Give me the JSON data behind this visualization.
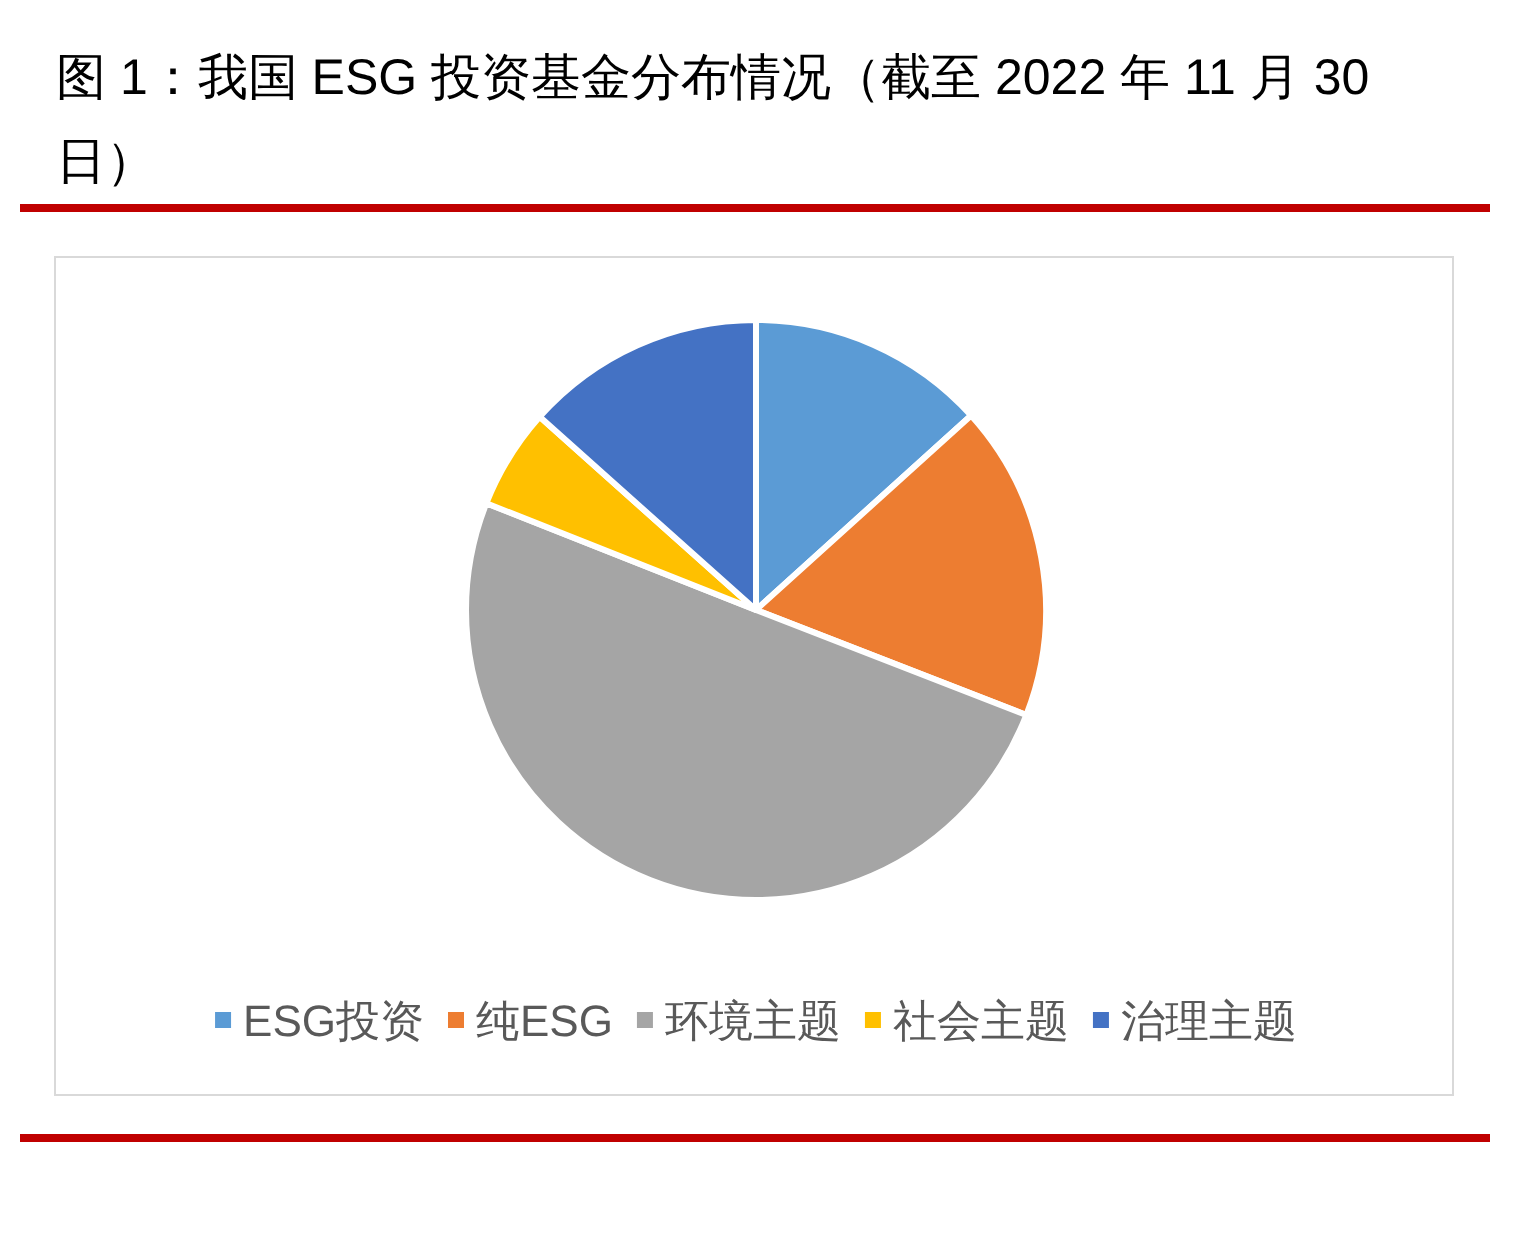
{
  "chart_data": {
    "type": "pie",
    "title": "图 1：我国 ESG 投资基金分布情况（截至 2022 年 11 月 30 日）",
    "categories": [
      "ESG投资",
      "纯ESG",
      "环境主题",
      "社会主题",
      "治理主题"
    ],
    "values": [
      13.3,
      17.6,
      50.1,
      5.6,
      13.4
    ],
    "colors": [
      "#5b9bd5",
      "#ed7d31",
      "#a5a5a5",
      "#ffc000",
      "#4472c4"
    ],
    "legend": "bottom"
  }
}
